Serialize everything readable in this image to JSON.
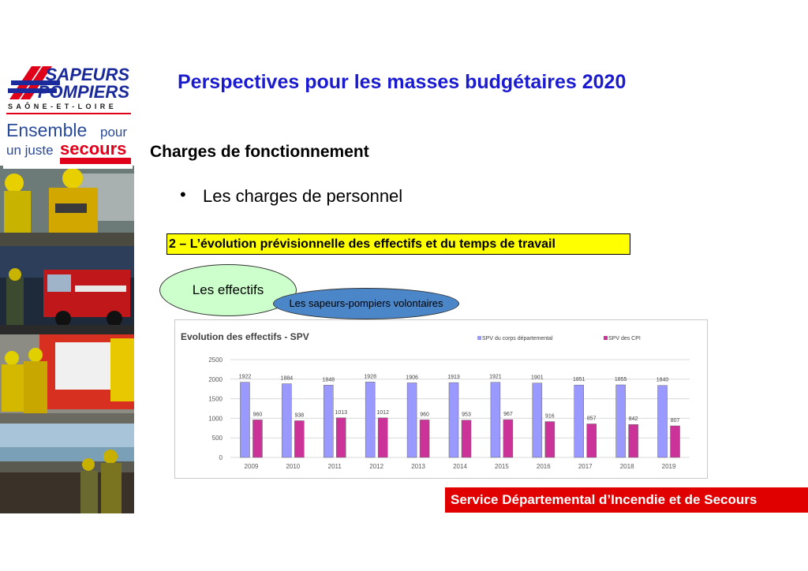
{
  "slide": {
    "title": "Perspectives pour les masses budgétaires 2020",
    "section_heading": "Charges de fonctionnement",
    "bullet": "Les charges de personnel",
    "highlight_text": "2 – L’évolution prévisionnelle des effectifs et du temps de travail",
    "ellipse_effectifs": "Les effectifs",
    "ellipse_spv": "Les sapeurs-pompiers volontaires",
    "footer": "Service Départemental d’Incendie et de Secours"
  },
  "logo": {
    "line1": "SAPEURS",
    "line2": "POMPIERS",
    "line3": "SAÔNE-ET-LOIRE",
    "tagline1_a": "Ensemble",
    "tagline1_b": "pour",
    "tagline2_a": "un juste",
    "tagline2_b": "secours"
  },
  "colors": {
    "title_blue": "#1a1ad0",
    "series1": "#9999ff",
    "series2": "#cc3399",
    "footer_red": "#e00000",
    "highlight_yellow": "#ffff00",
    "ellipse_green": "#ccffcc",
    "ellipse_blue": "#4a86c8"
  },
  "chart_data": {
    "type": "bar",
    "title": "Evolution des effectifs - SPV",
    "categories": [
      "2009",
      "2010",
      "2011",
      "2012",
      "2013",
      "2014",
      "2015",
      "2016",
      "2017",
      "2018",
      "2019"
    ],
    "series": [
      {
        "name": "SPV du corps départemental",
        "values": [
          1922,
          1884,
          1848,
          1928,
          1906,
          1913,
          1921,
          1901,
          1851,
          1855,
          1840
        ]
      },
      {
        "name": "SPV des CPI",
        "values": [
          960,
          938,
          1013,
          1012,
          960,
          953,
          967,
          916,
          857,
          842,
          807
        ]
      }
    ],
    "ylim": [
      0,
      2500
    ],
    "yticks": [
      0,
      500,
      1000,
      1500,
      2000,
      2500
    ],
    "grid": true,
    "legend_position": "top-right"
  }
}
